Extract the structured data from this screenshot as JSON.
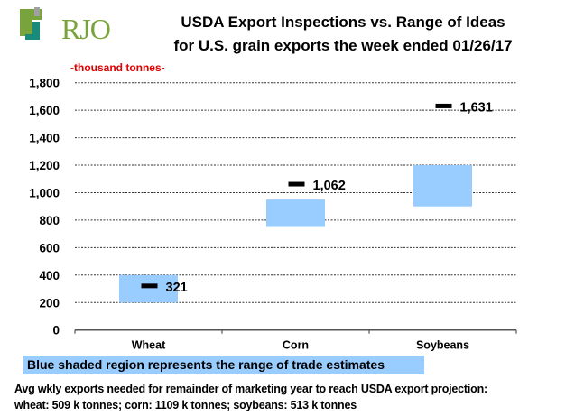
{
  "logo": {
    "text": "RJO",
    "colors": {
      "green": "#79a33c",
      "teal": "#1a8a7a",
      "gray": "#a0a0a0"
    }
  },
  "chart_data": {
    "type": "bar",
    "title": "USDA Export Inspections vs. Range of Ideas",
    "subtitle": "for U.S. grain exports the week ended 01/26/17",
    "ylabel": "-thousand tonnes-",
    "xlabel": "",
    "ylim": [
      0,
      1800
    ],
    "ytick_step": 200,
    "yticks": [
      "0",
      "200",
      "400",
      "600",
      "800",
      "1,000",
      "1,200",
      "1,400",
      "1,600",
      "1,800"
    ],
    "grid": true,
    "categories": [
      "Wheat",
      "Corn",
      "Soybeans"
    ],
    "series": [
      {
        "name": "Range of trade estimates (low)",
        "values": [
          200,
          750,
          900
        ]
      },
      {
        "name": "Range of trade estimates (high)",
        "values": [
          400,
          950,
          1200
        ]
      },
      {
        "name": "USDA export inspections",
        "values": [
          321,
          1062,
          1631
        ],
        "labels": [
          "321",
          "1,062",
          "1,631"
        ]
      }
    ],
    "colors": {
      "range": "#99ccff",
      "actual": "#000000",
      "ylabel": "#e00000"
    },
    "legend": "Blue shaded region represents the range of trade estimates",
    "legend_placement": "bottom"
  },
  "notes": {
    "line1": "Avg wkly exports needed for remainder of marketing year to reach USDA export projection:",
    "line2": "wheat: 509 k tonnes; corn: 1109 k tonnes; soybeans: 513 k tonnes"
  }
}
